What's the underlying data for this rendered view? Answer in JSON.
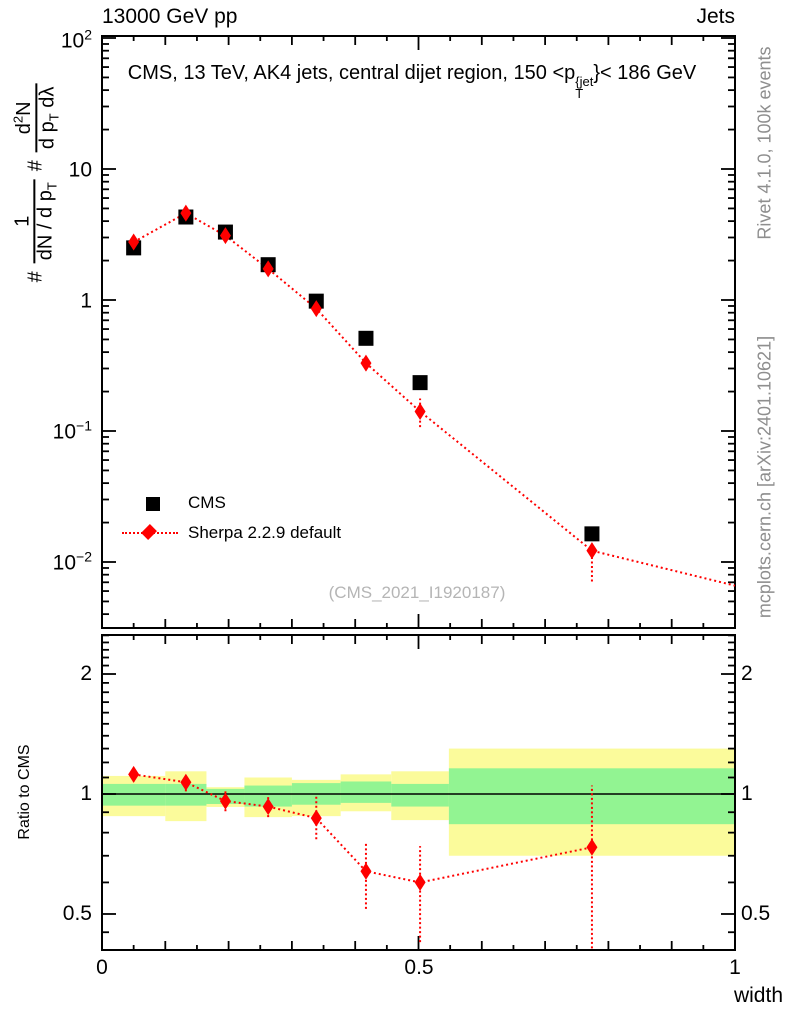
{
  "header": {
    "beam": "13000 GeV pp",
    "topic": "Jets"
  },
  "title": {
    "t1": "CMS, 13 TeV, AK4 jets, central dijet region, 150 <p",
    "sup": "{jet",
    "sub": "T",
    "t2": "}< 186 GeV"
  },
  "ylabel": {
    "h1": "#",
    "f1n": "1",
    "f1da": "dN / d p",
    "f1dsub": "T",
    "h2": "#",
    "f2na": "d",
    "f2nsup": "2",
    "f2nb": "N",
    "f2da": "d p",
    "f2dsub": "T",
    "f2db": " dλ"
  },
  "ratio_ylabel": "Ratio to CMS",
  "xlabel": "width",
  "watermark": "(CMS_2021_I1920187)",
  "side_notes": {
    "top": "Rivet 4.1.0,  100k events",
    "bottom": "mcplots.cern.ch [arXiv:2401.10621]"
  },
  "legend": [
    {
      "label": "CMS",
      "marker": "black-square"
    },
    {
      "label": "Sherpa 2.2.9 default",
      "marker": "red-dotted-line-diamond"
    }
  ],
  "ticks": {
    "main_y": [
      {
        "b": "10",
        "e": "2"
      },
      {
        "b": "10",
        "e": ""
      },
      {
        "b": "1",
        "e": ""
      },
      {
        "b": "10",
        "e": "−1"
      },
      {
        "b": "10",
        "e": "−2"
      }
    ],
    "ratio_y": [
      "2",
      "1",
      "0.5"
    ],
    "x": [
      "0",
      "0.5",
      "1"
    ]
  },
  "colors": {
    "accent_red": "#ff0000",
    "band_yellow": "#fbfb9b",
    "band_green": "#92f492",
    "frame": "#000000",
    "note_gray": "#8e8e8e",
    "watermark_gray": "#b5b5b5"
  },
  "chart_data": [
    {
      "type": "scatter",
      "title": "CMS, 13 TeV, AK4 jets, central dijet region, 150 < pT^{jet} < 186 GeV",
      "xlabel": "width",
      "ylabel": "# 1/(dN/dpT) # d2N/(dpT dλ)",
      "x_range": [
        0,
        1
      ],
      "y_scale": "log",
      "y_range": [
        0.0031,
        103.6
      ],
      "x_ticks": [
        0,
        0.5,
        1
      ],
      "y_ticks": [
        100,
        10,
        1,
        0.1,
        0.01
      ],
      "legend_position": "lower-left",
      "x": [
        0.05,
        0.1325,
        0.195,
        0.2625,
        0.3385,
        0.417,
        0.5025,
        0.774
      ],
      "series": [
        {
          "name": "CMS",
          "marker": "square",
          "color": "#000000",
          "y": [
            2.5,
            4.3,
            3.3,
            1.86,
            0.98,
            0.51,
            0.234,
            0.0164
          ]
        },
        {
          "name": "Sherpa 2.2.9 default",
          "marker": "diamond",
          "color": "#ff0000",
          "line": "dotted",
          "y": [
            2.77,
            4.6,
            3.1,
            1.73,
            0.86,
            0.33,
            0.141,
            0.0122
          ],
          "y_lo": [
            2.6,
            4.35,
            2.93,
            1.62,
            0.79,
            0.29,
            0.107,
            0.0071
          ],
          "y_hi": [
            2.95,
            4.87,
            3.28,
            1.85,
            0.94,
            0.37,
            0.177,
            0.0173
          ],
          "line_ext": {
            "x": 1.0,
            "y": 0.0066
          }
        }
      ]
    },
    {
      "type": "ratio",
      "ylabel": "Ratio to CMS",
      "y_scale": "log",
      "y_range": [
        0.406,
        2.5
      ],
      "y_ticks": [
        0.5,
        1,
        2
      ],
      "bin_edges": [
        0,
        0.1,
        0.165,
        0.225,
        0.3,
        0.377,
        0.457,
        0.548,
        1.0
      ],
      "bands": {
        "yellow": {
          "lo": [
            0.88,
            0.855,
            0.928,
            0.875,
            0.88,
            0.905,
            0.86,
            0.7
          ],
          "hi": [
            1.11,
            1.14,
            1.04,
            1.1,
            1.085,
            1.12,
            1.14,
            1.3
          ]
        },
        "green": {
          "lo": [
            0.935,
            0.935,
            0.944,
            0.93,
            0.94,
            0.95,
            0.93,
            0.84
          ],
          "hi": [
            1.06,
            1.06,
            1.03,
            1.05,
            1.065,
            1.075,
            1.06,
            1.16
          ]
        }
      },
      "x": [
        0.05,
        0.1325,
        0.195,
        0.2625,
        0.3385,
        0.417,
        0.5025,
        0.774
      ],
      "series": [
        {
          "name": "Sherpa 2.2.9 default / CMS",
          "marker": "diamond",
          "color": "#ff0000",
          "line": "dotted",
          "y": [
            1.12,
            1.07,
            0.96,
            0.93,
            0.87,
            0.64,
            0.6,
            0.735
          ],
          "y_lo": [
            1.075,
            1.015,
            0.905,
            0.875,
            0.77,
            0.515,
            0.425,
            0.41
          ],
          "y_hi": [
            1.165,
            1.125,
            1.015,
            0.985,
            0.985,
            0.755,
            0.74,
            1.05
          ]
        }
      ]
    }
  ]
}
